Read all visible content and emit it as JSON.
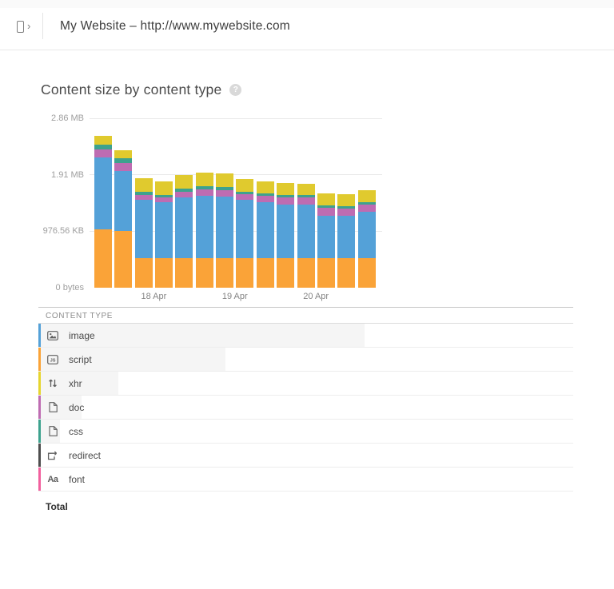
{
  "header": {
    "title": "My Website – http://www.mywebsite.com"
  },
  "chart": {
    "title": "Content size by content type",
    "help_glyph": "?"
  },
  "chart_data": {
    "type": "bar",
    "stacked": true,
    "title": "Content size by content type",
    "units": "KB",
    "bar_count": 14,
    "ylim_kb": [
      0,
      3000
    ],
    "y_ticks": [
      {
        "label": "2.86 MB",
        "kb": 3000
      },
      {
        "label": "1.91 MB",
        "kb": 2000
      },
      {
        "label": "976.56 KB",
        "kb": 1000
      },
      {
        "label": "0 bytes",
        "kb": 0
      }
    ],
    "x_ticks": [
      {
        "label": "18 Apr",
        "after_bar": 3
      },
      {
        "label": "19 Apr",
        "after_bar": 7
      },
      {
        "label": "20 Apr",
        "after_bar": 11
      }
    ],
    "series": [
      {
        "name": "script",
        "color": "#FAA338",
        "values": [
          1034,
          1005,
          517,
          517,
          517,
          517,
          517,
          517,
          517,
          517,
          517,
          517,
          517,
          517
        ]
      },
      {
        "name": "image",
        "color": "#54A1D8",
        "values": [
          1274,
          1062,
          1041,
          999,
          1084,
          1112,
          1098,
          1038,
          996,
          959,
          955,
          755,
          761,
          827
        ]
      },
      {
        "name": "doc",
        "color": "#BE6CB2",
        "values": [
          142,
          142,
          85,
          85,
          99,
          113,
          113,
          99,
          113,
          127,
          127,
          142,
          127,
          127
        ]
      },
      {
        "name": "css",
        "color": "#3DA28E",
        "values": [
          85,
          85,
          57,
          42,
          57,
          57,
          57,
          42,
          42,
          42,
          42,
          42,
          42,
          42
        ]
      },
      {
        "name": "xhr",
        "color": "#E0CA2E",
        "values": [
          155,
          142,
          240,
          240,
          240,
          240,
          240,
          230,
          215,
          210,
          200,
          215,
          210,
          215
        ]
      },
      {
        "name": "redirect",
        "color": "#4E4E4E",
        "values": [
          2,
          2,
          2,
          2,
          2,
          2,
          2,
          2,
          2,
          2,
          2,
          2,
          2,
          2
        ]
      },
      {
        "name": "font",
        "color": "#F2609E",
        "values": [
          2,
          2,
          2,
          2,
          2,
          2,
          2,
          2,
          2,
          2,
          2,
          2,
          2,
          2
        ]
      }
    ]
  },
  "table": {
    "header": "CONTENT TYPE",
    "total_label": "Total",
    "rows": [
      {
        "label": "image",
        "icon": "image-icon",
        "color": "#54A1D8",
        "bar_pct": 60.5
      },
      {
        "label": "script",
        "icon": "js-icon",
        "color": "#FAA338",
        "bar_pct": 34.5
      },
      {
        "label": "xhr",
        "icon": "arrows-icon",
        "color": "#E6D52F",
        "bar_pct": 14.5
      },
      {
        "label": "doc",
        "icon": "doc-icon",
        "color": "#BE6CB2",
        "bar_pct": 7.6
      },
      {
        "label": "css",
        "icon": "doc-icon",
        "color": "#3DA28E",
        "bar_pct": 3.6
      },
      {
        "label": "redirect",
        "icon": "redirect-icon",
        "color": "#4E4E4E",
        "bar_pct": 0
      },
      {
        "label": "font",
        "icon": "font-icon",
        "color": "#F2609E",
        "bar_pct": 0
      }
    ]
  }
}
